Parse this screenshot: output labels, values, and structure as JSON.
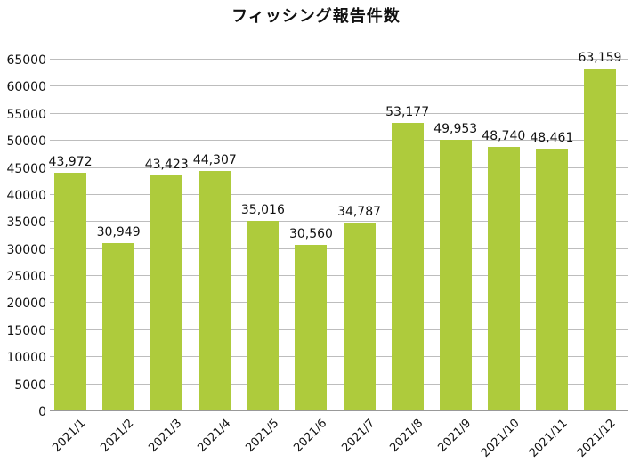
{
  "chart_data": {
    "type": "bar",
    "title": "フィッシング報告件数",
    "xlabel": "",
    "ylabel": "",
    "ylim": [
      0,
      65000
    ],
    "yticks": [
      0,
      5000,
      10000,
      15000,
      20000,
      25000,
      30000,
      35000,
      40000,
      45000,
      50000,
      55000,
      60000,
      65000
    ],
    "grid": true,
    "legend": null,
    "categories": [
      "2021/1",
      "2021/2",
      "2021/3",
      "2021/4",
      "2021/5",
      "2021/6",
      "2021/7",
      "2021/8",
      "2021/9",
      "2021/10",
      "2021/11",
      "2021/12"
    ],
    "values": [
      43972,
      30949,
      43423,
      44307,
      35016,
      30560,
      34787,
      53177,
      49953,
      48740,
      48461,
      63159
    ],
    "value_labels": [
      "43,972",
      "30,949",
      "43,423",
      "44,307",
      "35,016",
      "30,560",
      "34,787",
      "53,177",
      "49,953",
      "48,740",
      "48,461",
      "63,159"
    ],
    "bar_color": "#aecb3c"
  }
}
